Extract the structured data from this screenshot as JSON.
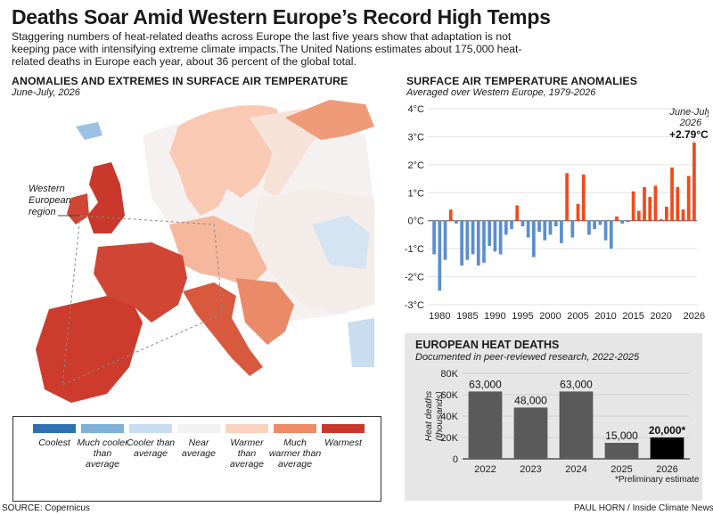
{
  "header": {
    "title": "Deaths Soar Amid Western Europe’s Record High Temps",
    "intro": "Staggering numbers of heat-related deaths across Europe the last five years show that adaptation is not keeping pace with intensifying extreme climate impacts.The United Nations estimates about 175,000 heat-related deaths in Europe each year, about 36 percent of the global total."
  },
  "map": {
    "title": "ANOMALIES AND EXTREMES IN SURFACE AIR TEMPERATURE",
    "subtitle": "June-July, 2026",
    "callout": [
      "Western",
      "European",
      "region"
    ],
    "legend": [
      {
        "label": "Coolest",
        "color": "#2f6fb3"
      },
      {
        "label": "Much cooler than average",
        "color": "#7eb0d8"
      },
      {
        "label": "Cooler than average",
        "color": "#c9ddf0"
      },
      {
        "label": "Near average",
        "color": "#f2f2f2"
      },
      {
        "label": "Warmer than average",
        "color": "#fbd2bd"
      },
      {
        "label": "Much warmer than average",
        "color": "#ee8a66"
      },
      {
        "label": "Warmest",
        "color": "#c9382b"
      }
    ]
  },
  "chart_data": [
    {
      "type": "bar",
      "title": "SURFACE AIR TEMPERATURE ANOMALIES",
      "subtitle": "Averaged over Western Europe, 1979-2026",
      "ylim": [
        -3,
        4
      ],
      "y_ticks": [
        "4°C",
        "3°C",
        "2°C",
        "1°C",
        "0°C",
        "-1°C",
        "-2°C",
        "-3°C"
      ],
      "x_ticks": [
        "1980",
        "1985",
        "1990",
        "1995",
        "2000",
        "2005",
        "2010",
        "2015",
        "2020",
        "2026"
      ],
      "annotation": {
        "line1": "June-July",
        "line2": "2026",
        "value_label": "+2.79°C"
      },
      "colors": {
        "positive": "#f24a1a",
        "negative": "#5b8ed0"
      },
      "x": [
        1979,
        1980,
        1981,
        1982,
        1983,
        1984,
        1985,
        1986,
        1987,
        1988,
        1989,
        1990,
        1991,
        1992,
        1993,
        1994,
        1995,
        1996,
        1997,
        1998,
        1999,
        2000,
        2001,
        2002,
        2003,
        2004,
        2005,
        2006,
        2007,
        2008,
        2009,
        2010,
        2011,
        2012,
        2013,
        2014,
        2015,
        2016,
        2017,
        2018,
        2019,
        2020,
        2021,
        2022,
        2023,
        2024,
        2025,
        2026
      ],
      "values": [
        -1.2,
        -2.5,
        -1.4,
        0.4,
        -0.1,
        -1.6,
        -1.4,
        -1.2,
        -1.6,
        -1.5,
        -0.9,
        -1.1,
        -1.2,
        -0.5,
        -0.3,
        0.55,
        -0.2,
        -0.6,
        -1.3,
        -0.4,
        -0.7,
        -0.5,
        -0.2,
        -0.8,
        1.7,
        -0.6,
        0.6,
        1.65,
        -0.5,
        -0.3,
        -0.15,
        -0.7,
        -1.0,
        0.15,
        -0.1,
        -0.05,
        1.05,
        0.35,
        1.2,
        0.85,
        1.25,
        0.05,
        0.5,
        1.9,
        1.2,
        0.4,
        1.6,
        2.79
      ]
    },
    {
      "type": "bar",
      "title": "EUROPEAN HEAT DEATHS",
      "subtitle": "Documented in peer-reviewed research, 2022-2025",
      "ylabel": "Heat deaths (thousands)",
      "ylim": [
        0,
        80
      ],
      "y_ticks": [
        "80K",
        "60K",
        "40K",
        "20K",
        "0"
      ],
      "categories": [
        "2022",
        "2023",
        "2024",
        "2025",
        "2026"
      ],
      "values": [
        63000,
        48000,
        63000,
        15000,
        20000
      ],
      "value_labels": [
        "63,000",
        "48,000",
        "63,000",
        "15,000",
        "20,000*"
      ],
      "colors": {
        "bar": "#5a5a5a",
        "highlight": "#000000"
      },
      "footnote": "*Preliminary estimate"
    }
  ],
  "footer": {
    "source": "SOURCE: Copernicus",
    "credit": "PAUL HORN / Inside Climate News"
  }
}
